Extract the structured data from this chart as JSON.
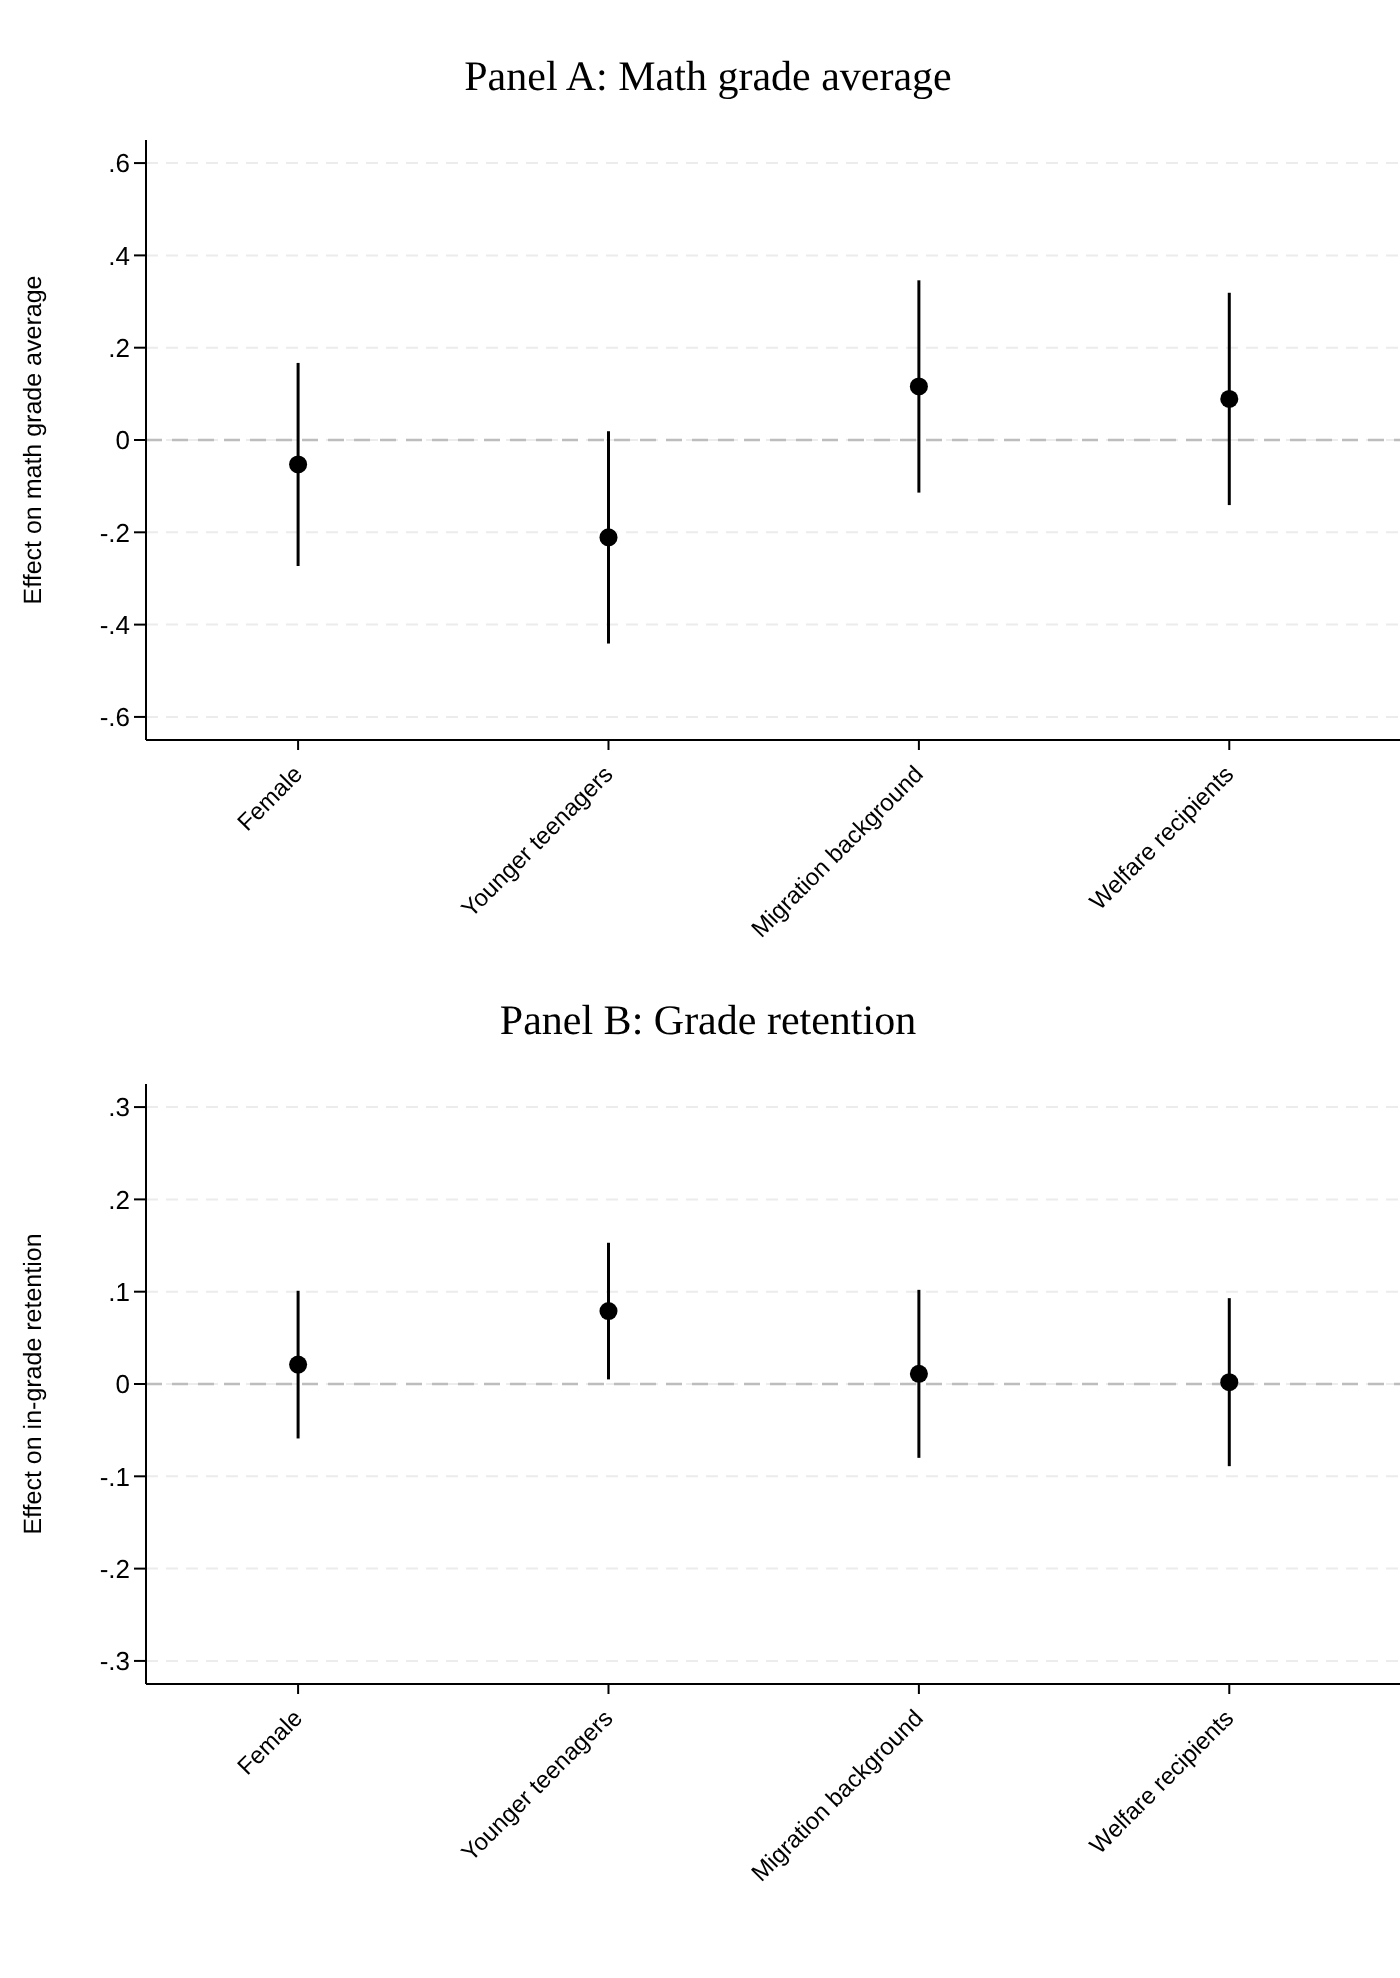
{
  "chart_data": [
    {
      "type": "scatter",
      "title": "Panel A: Math grade average",
      "ylabel": "Effect on math grade average",
      "categories": [
        "Female",
        "Younger teenagers",
        "Migration background",
        "Welfare recipients"
      ],
      "series": [
        {
          "color": "#000000",
          "values": [
            -0.053,
            -0.211,
            0.116,
            0.089
          ],
          "errors": [
            0.22,
            0.23,
            0.23,
            0.23
          ]
        }
      ],
      "ylim": [
        -0.65,
        0.65
      ],
      "yticks": [
        {
          "value": -0.6,
          "label": "-.6"
        },
        {
          "value": -0.4,
          "label": "-.4"
        },
        {
          "value": -0.2,
          "label": "-.2"
        },
        0,
        {
          "value": 0.2,
          "label": ".2"
        },
        {
          "value": 0.4,
          "label": ".4"
        },
        {
          "value": 0.6,
          "label": ".6"
        }
      ],
      "grid": "y",
      "marker": "circle",
      "ref_lines": [
        {
          "axis": "y",
          "value": 0,
          "color": "#bdbdbd",
          "line_style": "dashed"
        }
      ]
    },
    {
      "type": "scatter",
      "title": "Panel B: Grade retention",
      "ylabel": "Effect on in-grade retention",
      "categories": [
        "Female",
        "Younger teenagers",
        "Migration background",
        "Welfare recipients"
      ],
      "series": [
        {
          "color": "#000000",
          "values": [
            0.021,
            0.079,
            0.011,
            0.002
          ],
          "errors": [
            0.08,
            0.074,
            0.091,
            0.091
          ]
        }
      ],
      "ylim": [
        -0.325,
        0.325
      ],
      "yticks": [
        {
          "value": -0.3,
          "label": "-.3"
        },
        {
          "value": -0.2,
          "label": "-.2"
        },
        {
          "value": -0.1,
          "label": "-.1"
        },
        0,
        {
          "value": 0.1,
          "label": ".1"
        },
        {
          "value": 0.2,
          "label": ".2"
        },
        {
          "value": 0.3,
          "label": ".3"
        }
      ],
      "grid": "y",
      "marker": "circle",
      "ref_lines": [
        {
          "axis": "y",
          "value": 0,
          "color": "#bdbdbd",
          "line_style": "dashed"
        }
      ]
    }
  ]
}
